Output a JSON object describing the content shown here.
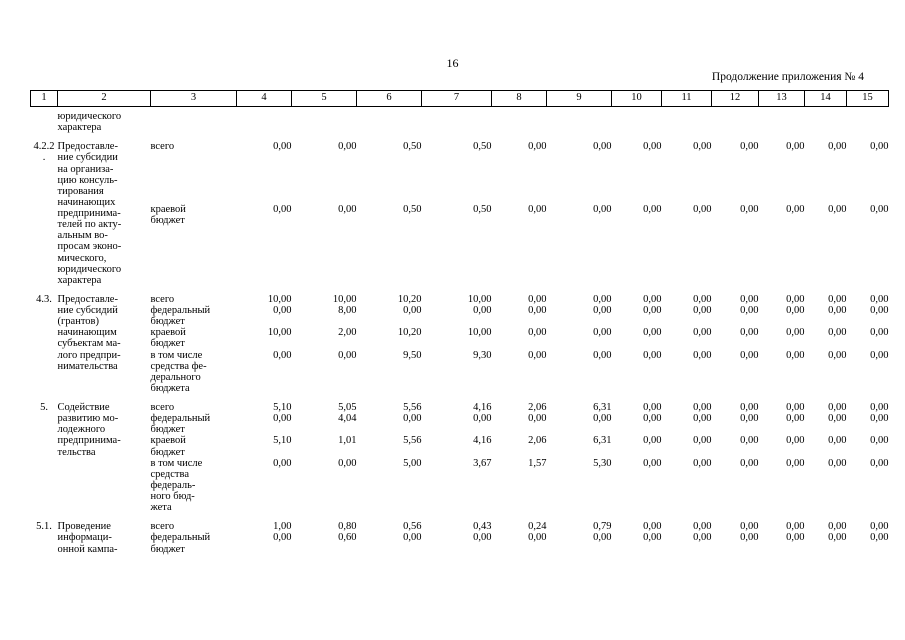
{
  "page": {
    "number": "16",
    "continuation_note": "Продолжение приложения № 4",
    "text_color": "#000000",
    "background_color": "#ffffff"
  },
  "table": {
    "column_headers": [
      "1",
      "2",
      "3",
      "4",
      "5",
      "6",
      "7",
      "8",
      "9",
      "10",
      "11",
      "12",
      "13",
      "14",
      "15"
    ],
    "carryover_text": "юридического\nхарактера",
    "items": [
      {
        "num": "4.2.2\n.",
        "name": "Предоставле-\nние субсидии\nна организа-\nцию консуль-\nтирования\nначинающих\nпредпринима-\nтелей по акту-\nальным во-\nпросам эконо-\nмического,\nюридического\nхарактера",
        "rows": [
          {
            "label": "всего",
            "values": [
              "0,00",
              "0,00",
              "0,50",
              "0,50",
              "0,00",
              "0,00",
              "0,00",
              "0,00",
              "0,00",
              "0,00",
              "0,00",
              "0,00"
            ]
          },
          {
            "label": "краевой\nбюджет",
            "values": [
              "0,00",
              "0,00",
              "0,50",
              "0,50",
              "0,00",
              "0,00",
              "0,00",
              "0,00",
              "0,00",
              "0,00",
              "0,00",
              "0,00"
            ]
          }
        ]
      },
      {
        "num": "4.3.",
        "name": "Предоставле-\nние субсидий\n(грантов)\nначинающим\nсубъектам ма-\nлого предпри-\nнимательства",
        "rows": [
          {
            "label": "всего",
            "values": [
              "10,00",
              "10,00",
              "10,20",
              "10,00",
              "0,00",
              "0,00",
              "0,00",
              "0,00",
              "0,00",
              "0,00",
              "0,00",
              "0,00"
            ]
          },
          {
            "label": "федеральный\nбюджет",
            "values": [
              "0,00",
              "8,00",
              "0,00",
              "0,00",
              "0,00",
              "0,00",
              "0,00",
              "0,00",
              "0,00",
              "0,00",
              "0,00",
              "0,00"
            ]
          },
          {
            "label": "краевой\nбюджет",
            "values": [
              "10,00",
              "2,00",
              "10,20",
              "10,00",
              "0,00",
              "0,00",
              "0,00",
              "0,00",
              "0,00",
              "0,00",
              "0,00",
              "0,00"
            ]
          },
          {
            "label": "в том числе\nсредства фе-\nдерального\nбюджета",
            "gap_before": true,
            "values": [
              "0,00",
              "0,00",
              "9,50",
              "9,30",
              "0,00",
              "0,00",
              "0,00",
              "0,00",
              "0,00",
              "0,00",
              "0,00",
              "0,00"
            ]
          }
        ]
      },
      {
        "num": "5.",
        "name": "Содействие\nразвитию мо-\nлодежного\nпредпринима-\nтельства",
        "rows": [
          {
            "label": "всего",
            "values": [
              "5,10",
              "5,05",
              "5,56",
              "4,16",
              "2,06",
              "6,31",
              "0,00",
              "0,00",
              "0,00",
              "0,00",
              "0,00",
              "0,00"
            ]
          },
          {
            "label": "федеральный\nбюджет",
            "values": [
              "0,00",
              "4,04",
              "0,00",
              "0,00",
              "0,00",
              "0,00",
              "0,00",
              "0,00",
              "0,00",
              "0,00",
              "0,00",
              "0,00"
            ]
          },
          {
            "label": "краевой\nбюджет",
            "values": [
              "5,10",
              "1,01",
              "5,56",
              "4,16",
              "2,06",
              "6,31",
              "0,00",
              "0,00",
              "0,00",
              "0,00",
              "0,00",
              "0,00"
            ]
          },
          {
            "label": "в том числе\nсредства\nфедераль-\nного бюд-\nжета",
            "label_offset": true,
            "values": [
              "0,00",
              "0,00",
              "5,00",
              "3,67",
              "1,57",
              "5,30",
              "0,00",
              "0,00",
              "0,00",
              "0,00",
              "0,00",
              "0,00"
            ]
          }
        ]
      },
      {
        "num": "5.1.",
        "name": "Проведение\nинформаци-\nонной кампа-",
        "rows": [
          {
            "label": "всего",
            "values": [
              "1,00",
              "0,80",
              "0,56",
              "0,43",
              "0,24",
              "0,79",
              "0,00",
              "0,00",
              "0,00",
              "0,00",
              "0,00",
              "0,00"
            ]
          },
          {
            "label": "федеральный\nбюджет",
            "values": [
              "0,00",
              "0,60",
              "0,00",
              "0,00",
              "0,00",
              "0,00",
              "0,00",
              "0,00",
              "0,00",
              "0,00",
              "0,00",
              "0,00"
            ]
          }
        ]
      }
    ]
  }
}
